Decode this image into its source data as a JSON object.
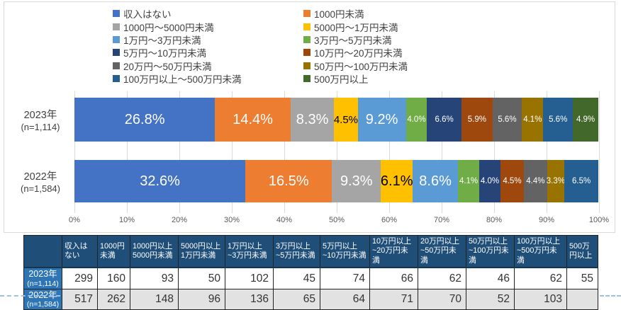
{
  "chart_data": {
    "type": "bar",
    "subtype": "horizontal-stacked",
    "title": "",
    "legend_position": "top",
    "grid": "vertical-light",
    "xlim": [
      0,
      100
    ],
    "x_ticks": [
      "0%",
      "10%",
      "20%",
      "30%",
      "40%",
      "50%",
      "60%",
      "70%",
      "80%",
      "90%",
      "100%"
    ],
    "categories": [
      {
        "year": "2023年",
        "n": "(n=1,114)"
      },
      {
        "year": "2022年",
        "n": "(n=1,584)"
      }
    ],
    "series": [
      {
        "legend": "収入はない",
        "color": "#4472C4",
        "label_color": "#FFFFFF",
        "values": [
          26.8,
          32.6
        ],
        "value_labels": [
          "26.8%",
          "32.6%"
        ]
      },
      {
        "legend": "1000円未満",
        "color": "#ED7D31",
        "label_color": "#FFFFFF",
        "values": [
          14.4,
          16.5
        ],
        "value_labels": [
          "14.4%",
          "16.5%"
        ]
      },
      {
        "legend": "1000円〜5000円未満",
        "color": "#A5A5A5",
        "label_color": "#FFFFFF",
        "values": [
          8.3,
          9.3
        ],
        "value_labels": [
          "8.3%",
          "9.3%"
        ]
      },
      {
        "legend": "5000円〜1万円未満",
        "color": "#FFC000",
        "label_color": "#000000",
        "values": [
          4.5,
          6.1
        ],
        "value_labels": [
          "4.5%",
          "6.1%"
        ]
      },
      {
        "legend": "1万円〜3万円未満",
        "color": "#5B9BD5",
        "label_color": "#FFFFFF",
        "values": [
          9.2,
          8.6
        ],
        "value_labels": [
          "9.2%",
          "8.6%"
        ]
      },
      {
        "legend": "3万円〜5万円未満",
        "color": "#70AD47",
        "label_color": "#FFFFFF",
        "values": [
          4.0,
          4.1
        ],
        "value_labels": [
          "4.0%",
          "4.1%"
        ]
      },
      {
        "legend": "5万円〜10万円未満",
        "color": "#264478",
        "label_color": "#FFFFFF",
        "values": [
          6.6,
          4.0
        ],
        "value_labels": [
          "6.6%",
          "4.0%"
        ]
      },
      {
        "legend": "10万円〜20万円未満",
        "color": "#9E480E",
        "label_color": "#FFFFFF",
        "values": [
          5.9,
          4.5
        ],
        "value_labels": [
          "5.9%",
          "4.5%"
        ]
      },
      {
        "legend": "20万円〜50万円未満",
        "color": "#636363",
        "label_color": "#FFFFFF",
        "values": [
          5.6,
          4.4
        ],
        "value_labels": [
          "5.6%",
          "4.4%"
        ]
      },
      {
        "legend": "50万円〜100万円未満",
        "color": "#997300",
        "label_color": "#FFFFFF",
        "values": [
          4.1,
          3.3
        ],
        "value_labels": [
          "4.1%",
          "3.3%"
        ]
      },
      {
        "legend": "100万円以上〜500万円未満",
        "color": "#255E91",
        "label_color": "#FFFFFF",
        "values": [
          5.6,
          6.5
        ],
        "value_labels": [
          "5.6%",
          "6.5%"
        ]
      },
      {
        "legend": "500万円以上",
        "color": "#43682B",
        "label_color": "#FFFFFF",
        "values": [
          4.9,
          0
        ],
        "value_labels": [
          "4.9%",
          ""
        ]
      }
    ]
  },
  "table": {
    "corner_label": "",
    "columns": [
      "収入はない",
      "1000円未満",
      "1000円以上5000円未満",
      "5000円以上1万円未満",
      "1万円以上~3万円未満",
      "3万円以上~5万円未満",
      "5万円以上~10万円未満",
      "10万円以上~20万円未満",
      "20万円以上~50万円未満",
      "50万円以上~100万円未満",
      "100万円以上~500万円未満",
      "500万円以上"
    ],
    "rows": [
      {
        "label": "2023年",
        "sublabel": "(n=1,114)",
        "values": [
          "299",
          "160",
          "93",
          "50",
          "102",
          "45",
          "74",
          "66",
          "62",
          "46",
          "62",
          "55"
        ]
      },
      {
        "label": "2022年",
        "sublabel": "(n=1,584)",
        "values": [
          "517",
          "262",
          "148",
          "96",
          "136",
          "65",
          "64",
          "71",
          "70",
          "52",
          "103",
          ""
        ]
      }
    ]
  },
  "theme": {
    "chart_border": "#D9D9D9",
    "grid_color": "#D9D9D9",
    "axis_text": "#595959",
    "legend_text": "#404040",
    "table_header_bg": "#1F4E79",
    "table_rowheader_bg": "#2E75B6",
    "table_alt_row_bg": "#E2E2E2",
    "page_break_color": "#9DC3E6"
  }
}
